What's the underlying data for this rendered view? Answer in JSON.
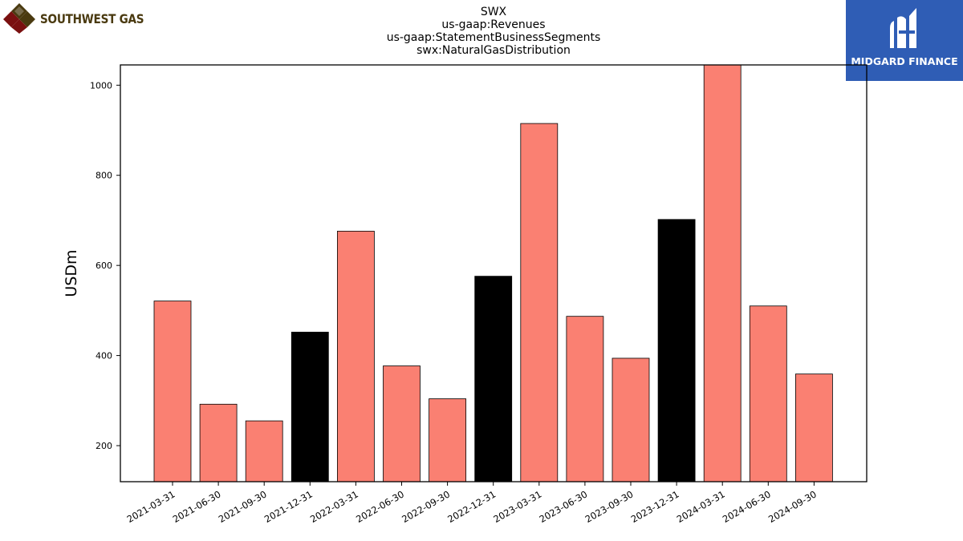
{
  "header": {
    "left_logo_text": "SOUTHWEST GAS",
    "right_logo_text": "MIDGARD FINANCE",
    "title_lines": [
      "SWX",
      "us-gaap:Revenues",
      "us-gaap:StatementBusinessSegments",
      "swx:NaturalGasDistribution"
    ]
  },
  "colors": {
    "regular": "#fa8072",
    "highlight": "#000000",
    "brand_blue": "#2f5db5",
    "logo_red": "#7a1010",
    "logo_gold": "#4a3a10"
  },
  "chart_data": {
    "type": "bar",
    "title": "SWX",
    "subtitle": "us-gaap:Revenues / us-gaap:StatementBusinessSegments / swx:NaturalGasDistribution",
    "xlabel": "",
    "ylabel": "USDm",
    "ylim": [
      120,
      1045
    ],
    "yticks": [
      200,
      400,
      600,
      800,
      1000
    ],
    "categories": [
      "2021-03-31",
      "2021-06-30",
      "2021-09-30",
      "2021-12-31",
      "2022-03-31",
      "2022-06-30",
      "2022-09-30",
      "2022-12-31",
      "2023-03-31",
      "2023-06-30",
      "2023-09-30",
      "2023-12-31",
      "2024-03-31",
      "2024-06-30",
      "2024-09-30"
    ],
    "values": [
      521,
      292,
      255,
      452,
      676,
      377,
      304,
      576,
      915,
      487,
      394,
      702,
      1045,
      510,
      359
    ],
    "highlighted": [
      false,
      false,
      false,
      true,
      false,
      false,
      false,
      true,
      false,
      false,
      false,
      true,
      false,
      false,
      false
    ],
    "grid": false,
    "legend": "none"
  }
}
